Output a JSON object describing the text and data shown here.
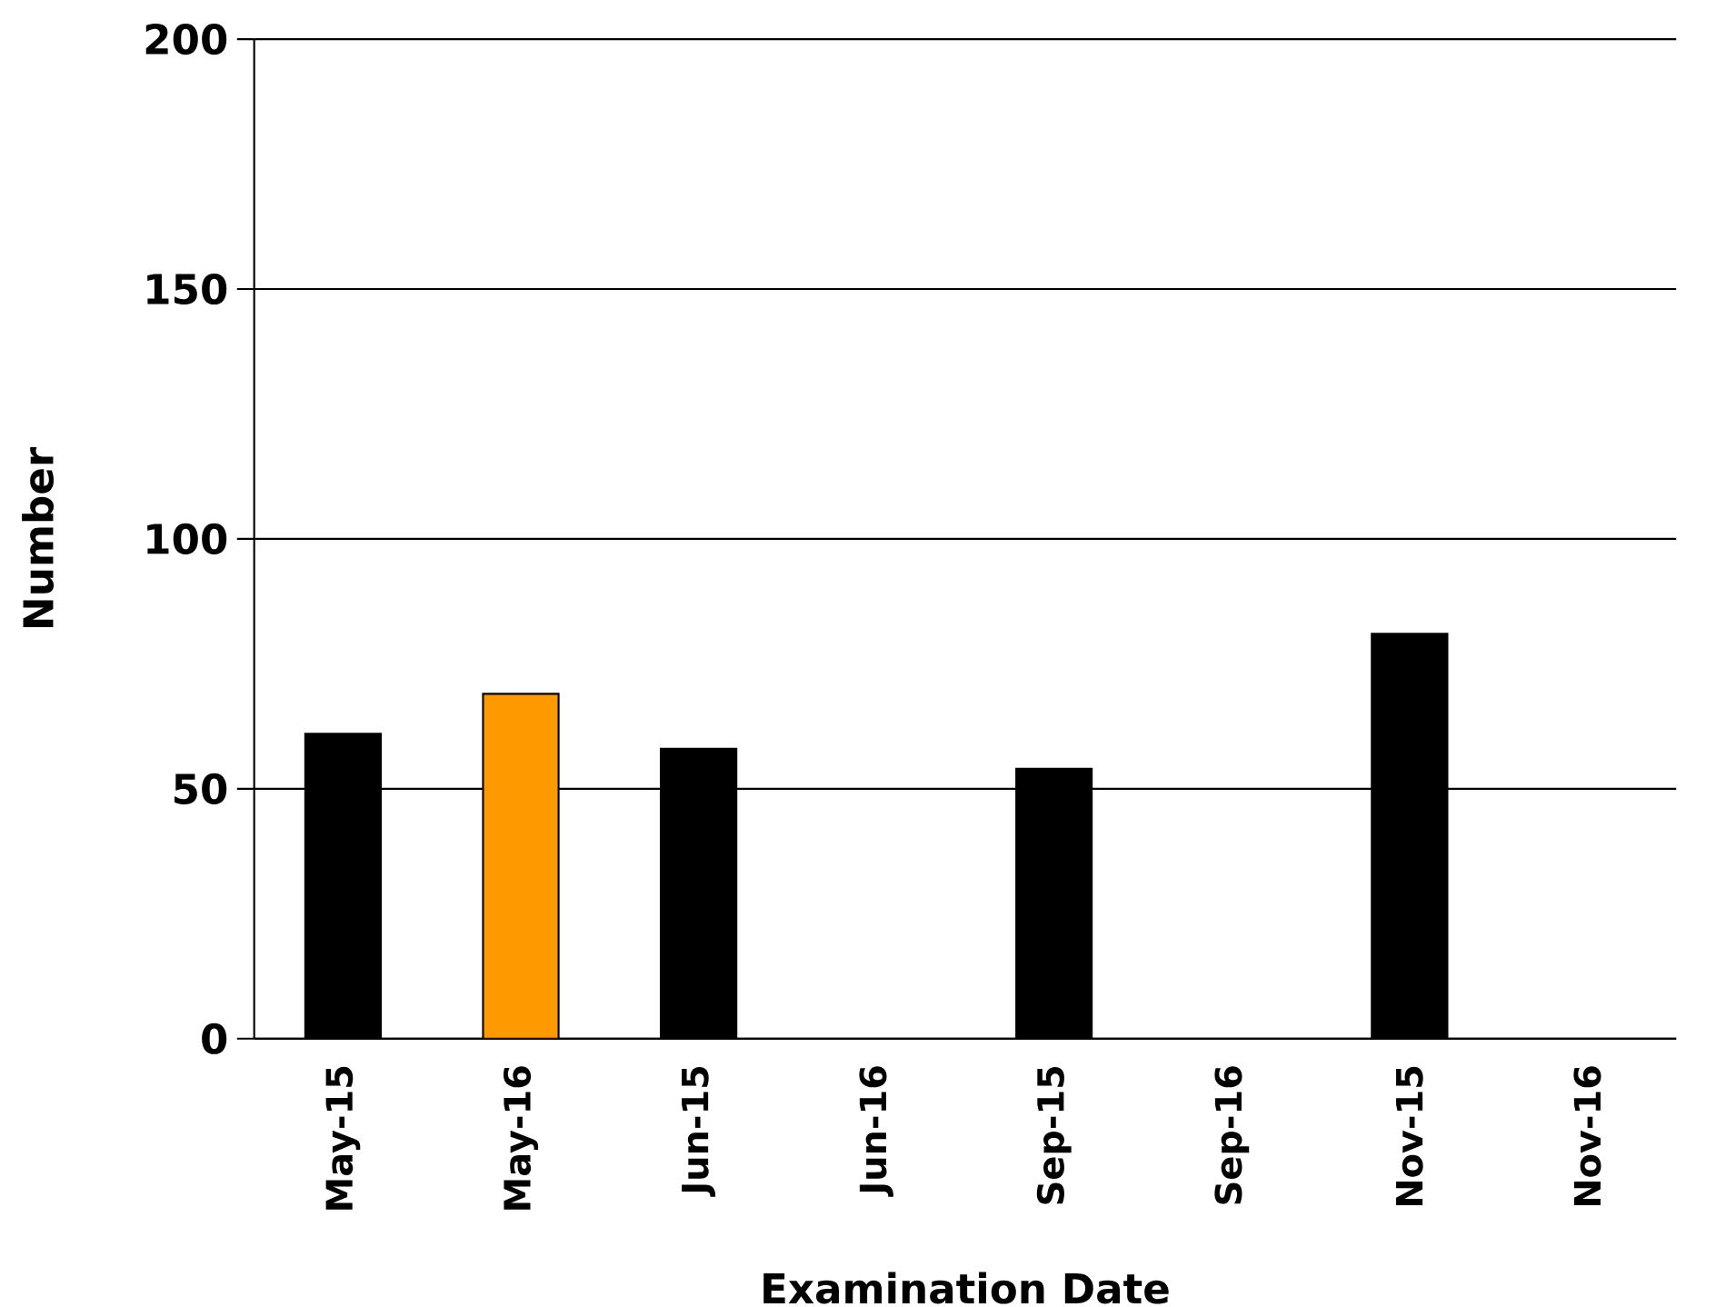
{
  "chart_data": {
    "type": "bar",
    "xlabel": "Examination Date",
    "ylabel": "Number",
    "categories": [
      "May-15",
      "May-16",
      "Jun-15",
      "Jun-16",
      "Sep-15",
      "Sep-16",
      "Nov-15",
      "Nov-16"
    ],
    "values": [
      61,
      69,
      58,
      null,
      54,
      null,
      81,
      null
    ],
    "colors": [
      "#000000",
      "#ff9900",
      "#000000",
      "#000000",
      "#000000",
      "#000000",
      "#000000",
      "#000000"
    ],
    "ylim": [
      0,
      200
    ],
    "yticks": [
      0,
      50,
      100,
      150,
      200
    ],
    "grid": "y"
  }
}
